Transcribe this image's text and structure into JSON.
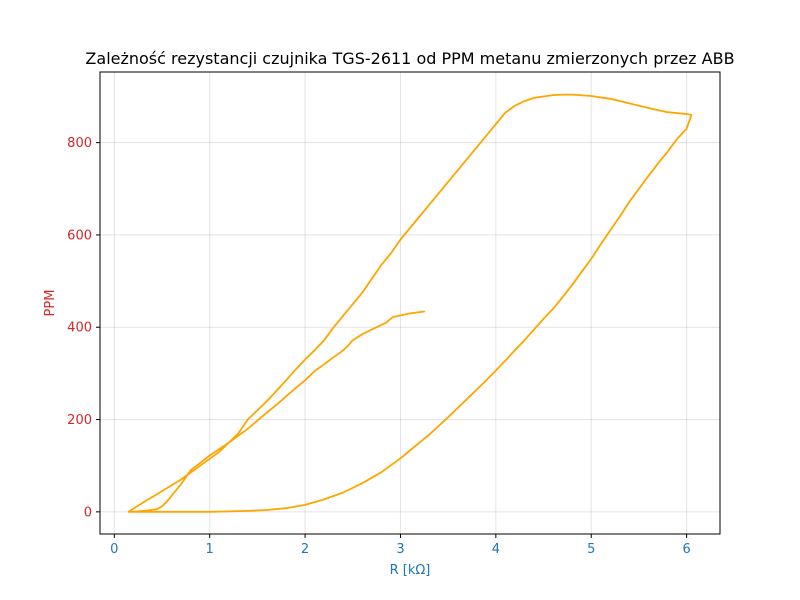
{
  "chart_data": {
    "type": "line",
    "title": "Zależność rezystancji czujnika TGS-2611 od PPM metanu zmierzonych przez ABB",
    "xlabel": "R [kΩ]",
    "ylabel": "PPM",
    "xlim": [
      -0.15,
      6.35
    ],
    "ylim": [
      -48,
      953
    ],
    "xticks": [
      0,
      1,
      2,
      3,
      4,
      5,
      6
    ],
    "yticks": [
      0,
      200,
      400,
      600,
      800
    ],
    "grid": true,
    "colors": {
      "series": "#FFA500",
      "xaxis_text": "#1f77b4",
      "yaxis_text": "#d62728"
    },
    "series": [
      {
        "x": [
          3.25,
          3.1,
          2.98,
          2.92,
          2.85,
          2.75,
          2.6,
          2.5,
          2.45,
          2.4,
          2.3,
          2.2,
          2.1,
          2.0,
          1.9,
          1.8,
          1.7,
          1.6,
          1.5,
          1.4,
          1.3,
          1.2,
          1.1,
          1.0,
          0.9,
          0.8,
          0.7,
          0.62,
          0.55,
          0.5,
          0.45,
          0.35,
          0.25,
          0.2,
          0.15,
          0.3,
          0.5,
          0.7,
          0.9,
          1.0,
          1.1,
          1.2,
          1.3,
          1.4,
          1.5,
          1.6,
          1.7,
          1.8,
          1.9,
          2.0,
          2.1,
          2.2,
          2.3,
          2.4,
          2.5,
          2.6,
          2.7,
          2.8,
          2.9,
          3.0,
          3.1,
          3.2,
          3.3,
          3.4,
          3.5,
          3.6,
          3.7,
          3.8,
          3.9,
          4.0,
          4.1,
          4.2,
          4.3,
          4.4,
          4.5,
          4.6,
          4.7,
          4.8,
          5.0,
          5.2,
          5.4,
          5.6,
          5.8,
          6.0,
          6.05,
          6.0,
          5.9,
          5.8,
          5.7,
          5.6,
          5.5,
          5.4,
          5.3,
          5.2,
          5.1,
          5.0,
          4.9,
          4.8,
          4.7,
          4.6,
          4.5,
          4.4,
          4.3,
          4.2,
          4.1,
          4.0,
          3.9,
          3.8,
          3.7,
          3.6,
          3.5,
          3.4,
          3.3,
          3.2,
          3.1,
          3.0,
          2.8,
          2.6,
          2.4,
          2.2,
          2.0,
          1.8,
          1.6,
          1.4,
          1.2,
          1.0,
          0.8,
          0.6,
          0.45,
          0.35,
          0.25,
          0.15
        ],
        "y": [
          434,
          430,
          425,
          422,
          410,
          400,
          385,
          372,
          360,
          350,
          335,
          320,
          305,
          285,
          268,
          250,
          232,
          215,
          198,
          180,
          165,
          150,
          136,
          122,
          106,
          90,
          60,
          40,
          22,
          12,
          6,
          3,
          1,
          0,
          0,
          20,
          45,
          70,
          100,
          115,
          130,
          150,
          170,
          200,
          220,
          240,
          262,
          285,
          308,
          330,
          350,
          372,
          400,
          425,
          450,
          475,
          505,
          535,
          560,
          590,
          615,
          640,
          665,
          690,
          715,
          740,
          765,
          790,
          815,
          840,
          865,
          880,
          890,
          897,
          900,
          903,
          904,
          904,
          901,
          895,
          885,
          875,
          866,
          862,
          860,
          830,
          808,
          780,
          755,
          728,
          700,
          672,
          640,
          610,
          580,
          548,
          520,
          492,
          465,
          440,
          418,
          395,
          372,
          350,
          328,
          306,
          285,
          265,
          245,
          225,
          205,
          186,
          167,
          150,
          133,
          116,
          86,
          62,
          42,
          27,
          15,
          8,
          4,
          2,
          1,
          0,
          0,
          0,
          0,
          0,
          0,
          0
        ]
      }
    ]
  }
}
